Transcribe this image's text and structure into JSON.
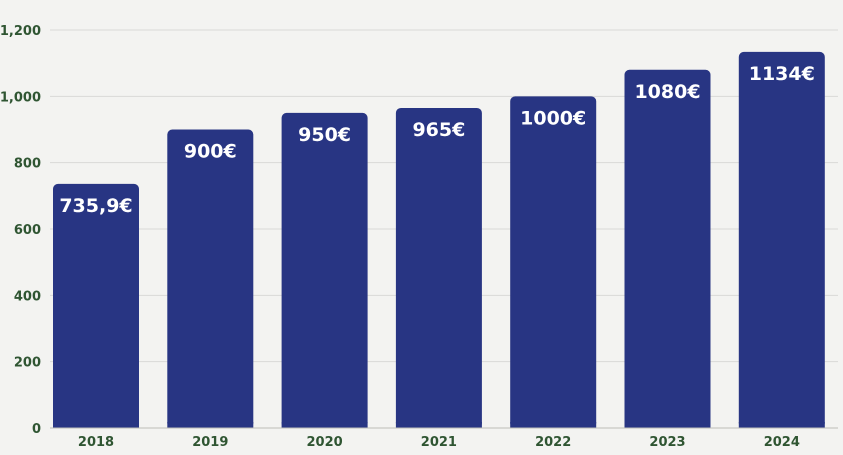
{
  "chart_data": {
    "type": "bar",
    "title": "",
    "xlabel": "",
    "ylabel": "",
    "categories": [
      "2018",
      "2019",
      "2020",
      "2021",
      "2022",
      "2023",
      "2024"
    ],
    "values": [
      735.9,
      900,
      950,
      965,
      1000,
      1080,
      1134
    ],
    "data_labels": [
      "735,9€",
      "900€",
      "950€",
      "965€",
      "1000€",
      "1080€",
      "1134€"
    ],
    "ylim": [
      0,
      1200
    ],
    "yticks": [
      0,
      200,
      400,
      600,
      800,
      1000,
      1200
    ],
    "ytick_labels": [
      "0",
      "200",
      "400",
      "600",
      "800",
      "1,000",
      "1,200"
    ],
    "grid": true,
    "legend": "none",
    "colors": {
      "bar": "#283583",
      "tick_text": "#2f5532",
      "grid": "#d9d9d6",
      "background": "#f3f3f1",
      "data_label": "#ffffff"
    }
  }
}
